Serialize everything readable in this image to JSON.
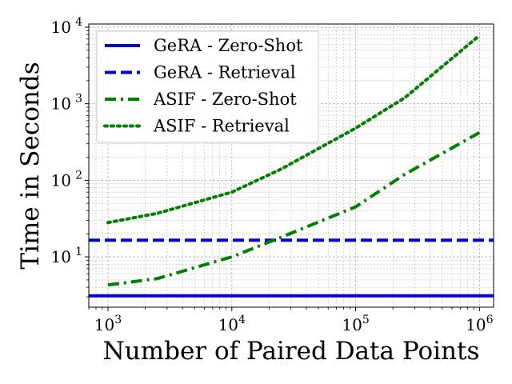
{
  "chart_data": {
    "type": "line",
    "title": "",
    "xlabel": "Number of Paired Data Points",
    "ylabel": "Time in Seconds",
    "xscale": "log",
    "yscale": "log",
    "xlim": [
      700,
      1300000
    ],
    "ylim": [
      2.2,
      11000
    ],
    "grid": true,
    "legend_position": "top-left",
    "x_ticks": [
      {
        "value": 1000,
        "base": "10",
        "exp": "3"
      },
      {
        "value": 10000,
        "base": "10",
        "exp": "4"
      },
      {
        "value": 100000,
        "base": "10",
        "exp": "5"
      },
      {
        "value": 1000000,
        "base": "10",
        "exp": "6"
      }
    ],
    "y_ticks": [
      {
        "value": 10,
        "base": "10",
        "exp": "1"
      },
      {
        "value": 100,
        "base": "10",
        "exp": "2"
      },
      {
        "value": 1000,
        "base": "10",
        "exp": "3"
      },
      {
        "value": 10000,
        "base": "10",
        "exp": "4"
      }
    ],
    "series": [
      {
        "name": "GeRA - Zero-Shot",
        "color": "#0000dd",
        "style": "solid",
        "x": [
          700,
          1300000
        ],
        "y": [
          3.1,
          3.1
        ]
      },
      {
        "name": "GeRA - Retrieval",
        "color": "#0000dd",
        "style": "dashed",
        "x": [
          700,
          1300000
        ],
        "y": [
          16.5,
          16.5
        ]
      },
      {
        "name": "ASIF - Zero-Shot",
        "color": "#008000",
        "style": "dashdot",
        "x": [
          1000,
          2500,
          10000,
          25000,
          100000,
          250000,
          1000000
        ],
        "y": [
          4.3,
          5.2,
          10,
          18,
          45,
          120,
          420
        ]
      },
      {
        "name": "ASIF - Retrieval",
        "color": "#008000",
        "style": "dotted",
        "x": [
          1000,
          2500,
          10000,
          25000,
          100000,
          250000,
          1000000
        ],
        "y": [
          28,
          37,
          70,
          140,
          480,
          1200,
          7800
        ]
      }
    ]
  }
}
